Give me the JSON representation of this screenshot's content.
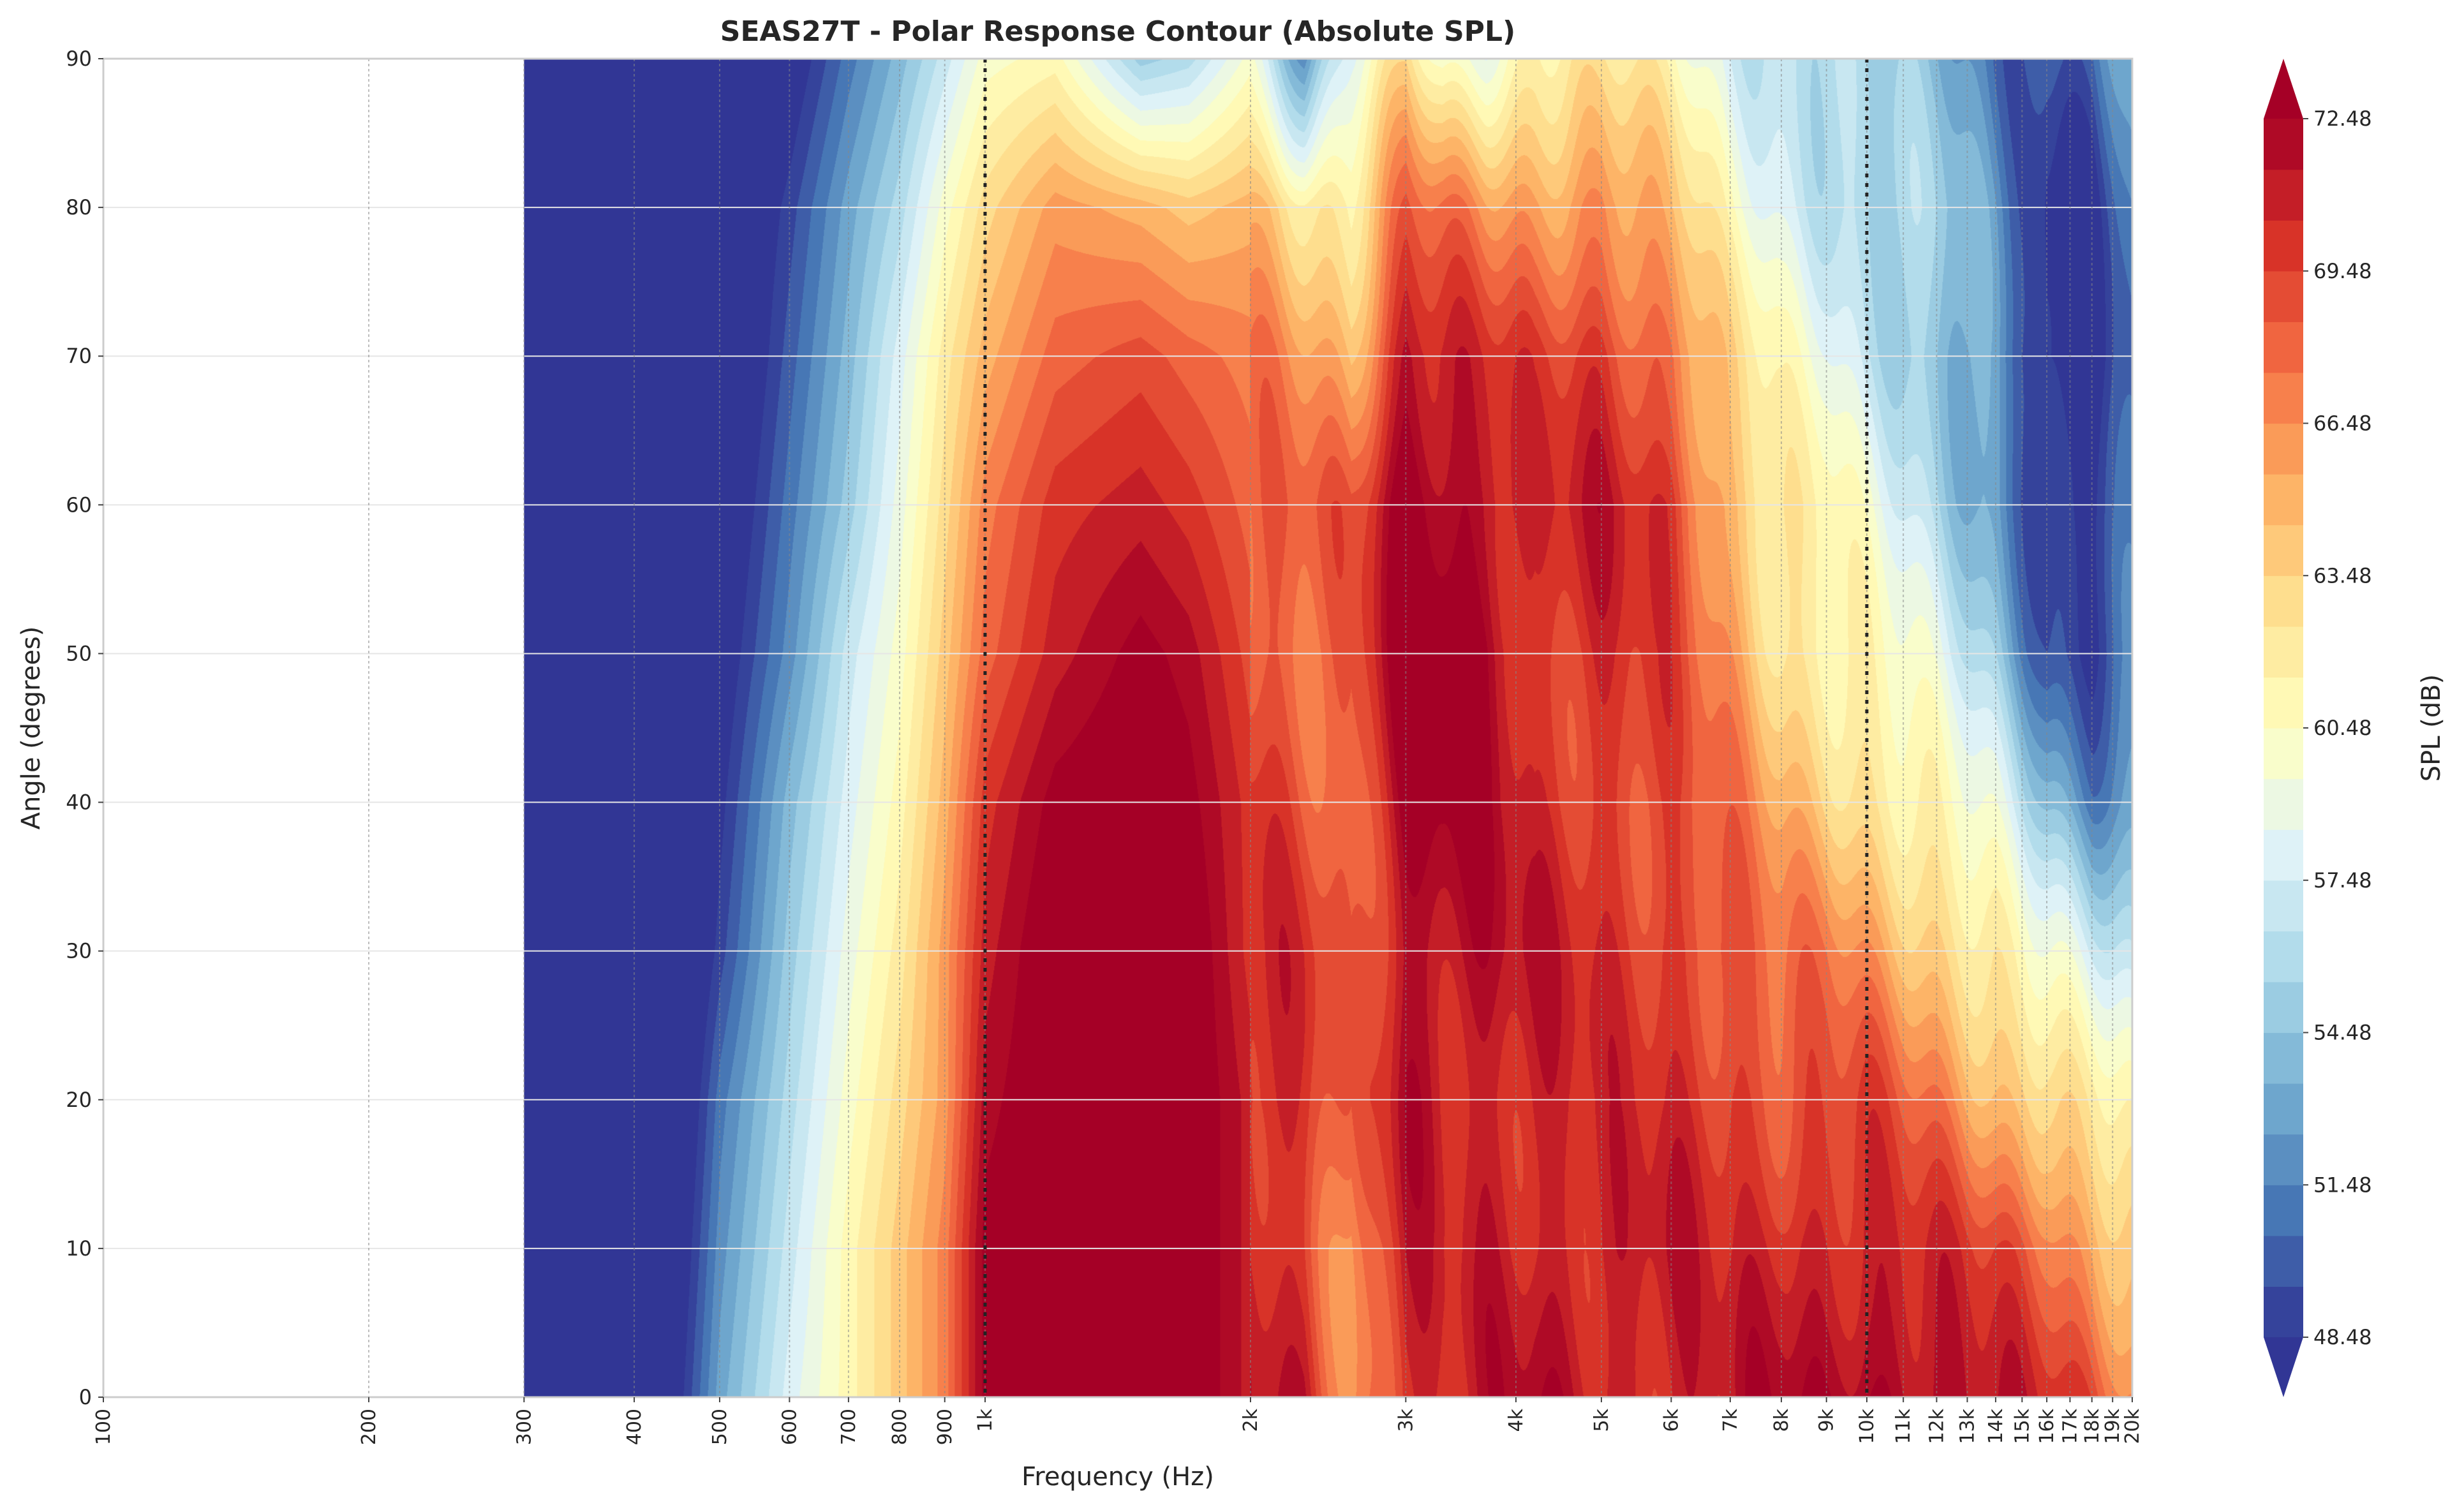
{
  "chart_data": {
    "type": "heatmap",
    "title": "SEAS27T - Polar Response Contour (Absolute SPL)",
    "xlabel": "Frequency (Hz)",
    "ylabel": "Angle (degrees)",
    "x_scale": "log",
    "xlim": [
      100,
      20000
    ],
    "ylim": [
      0,
      90
    ],
    "x_ticks": [
      {
        "value": 100,
        "label": "100"
      },
      {
        "value": 200,
        "label": "200"
      },
      {
        "value": 300,
        "label": "300"
      },
      {
        "value": 400,
        "label": "400"
      },
      {
        "value": 500,
        "label": "500"
      },
      {
        "value": 600,
        "label": "600"
      },
      {
        "value": 700,
        "label": "700"
      },
      {
        "value": 800,
        "label": "800"
      },
      {
        "value": 900,
        "label": "900"
      },
      {
        "value": 1000,
        "label": "1k"
      },
      {
        "value": 2000,
        "label": "2k"
      },
      {
        "value": 3000,
        "label": "3k"
      },
      {
        "value": 4000,
        "label": "4k"
      },
      {
        "value": 5000,
        "label": "5k"
      },
      {
        "value": 6000,
        "label": "6k"
      },
      {
        "value": 7000,
        "label": "7k"
      },
      {
        "value": 8000,
        "label": "8k"
      },
      {
        "value": 9000,
        "label": "9k"
      },
      {
        "value": 10000,
        "label": "10k"
      },
      {
        "value": 11000,
        "label": "11k"
      },
      {
        "value": 12000,
        "label": "12k"
      },
      {
        "value": 13000,
        "label": "13k"
      },
      {
        "value": 14000,
        "label": "14k"
      },
      {
        "value": 15000,
        "label": "15k"
      },
      {
        "value": 16000,
        "label": "16k"
      },
      {
        "value": 17000,
        "label": "17k"
      },
      {
        "value": 18000,
        "label": "18k"
      },
      {
        "value": 19000,
        "label": "19k"
      },
      {
        "value": 20000,
        "label": "20k"
      }
    ],
    "y_ticks": [
      0,
      10,
      20,
      30,
      40,
      50,
      60,
      70,
      80,
      90
    ],
    "reference_lines_hz": [
      1000,
      10000
    ],
    "data_start_hz": 300,
    "colorbar": {
      "label": "SPL (dB)",
      "min": 48.48,
      "max": 72.48,
      "step": 1,
      "extend": "both",
      "ticks": [
        48.48,
        51.48,
        54.48,
        57.48,
        60.48,
        63.48,
        66.48,
        69.48,
        72.48
      ],
      "colormap": "RdYlBu_r"
    },
    "x_freq_grid": [
      300,
      450,
      500,
      600,
      700,
      800,
      900,
      1000,
      1200,
      1500,
      1700,
      2000,
      2300,
      2600,
      3000,
      3300,
      3700,
      4200,
      5000,
      6000,
      7000,
      8000,
      9000,
      10000,
      12000,
      14000,
      16000,
      18000,
      20000
    ],
    "y_angle_grid": [
      0,
      10,
      20,
      30,
      40,
      50,
      60,
      70,
      80,
      90
    ],
    "spl_grid": [
      [
        44,
        44,
        44,
        44,
        44,
        44,
        44,
        44,
        44,
        44
      ],
      [
        48,
        47,
        46,
        45,
        44,
        44,
        44,
        44,
        44,
        44
      ],
      [
        53,
        52,
        51,
        49,
        48,
        47,
        46,
        45,
        45,
        44
      ],
      [
        58,
        57,
        56,
        55,
        54,
        52,
        51,
        50,
        49,
        47
      ],
      [
        61,
        61,
        60,
        59,
        58,
        57,
        55,
        54,
        53,
        51
      ],
      [
        64,
        64,
        63,
        62,
        61,
        60,
        59,
        58,
        56,
        54
      ],
      [
        67,
        67,
        66,
        66,
        65,
        64,
        63,
        62,
        60,
        57
      ],
      [
        73,
        73,
        72,
        71,
        70,
        68,
        67,
        65,
        63,
        60
      ],
      [
        74,
        74,
        74,
        74,
        73,
        71,
        70,
        68,
        66,
        61
      ],
      [
        75,
        75,
        75,
        75,
        74,
        73,
        71,
        69,
        65,
        55
      ],
      [
        74,
        74,
        74,
        74,
        73,
        72,
        70,
        68,
        64,
        56
      ],
      [
        71,
        71,
        71,
        70,
        70,
        69,
        68,
        67,
        65,
        60
      ],
      [
        71,
        70,
        70,
        70,
        69,
        68,
        68,
        66,
        63,
        52
      ],
      [
        66,
        66,
        67,
        68,
        68,
        68,
        68,
        65,
        62,
        58
      ],
      [
        71,
        71,
        72,
        72,
        73,
        74,
        74,
        72,
        68,
        63
      ],
      [
        70,
        70,
        71,
        72,
        73,
        74,
        73,
        71,
        67,
        60
      ],
      [
        71,
        71,
        71,
        72,
        72,
        73,
        72,
        70,
        66,
        60
      ],
      [
        72,
        71,
        71,
        71,
        70,
        70,
        70,
        69,
        66,
        62
      ],
      [
        71,
        71,
        70,
        70,
        70,
        70,
        71,
        70,
        67,
        62
      ],
      [
        71,
        71,
        70,
        70,
        69,
        69,
        70,
        68,
        64,
        61
      ],
      [
        71,
        70,
        70,
        69,
        67,
        66,
        65,
        63,
        60,
        58
      ],
      [
        72,
        71,
        69,
        67,
        65,
        63,
        62,
        60,
        58,
        57
      ],
      [
        72,
        71,
        69,
        67,
        64,
        62,
        61,
        59,
        57,
        56
      ],
      [
        73,
        71,
        69,
        66,
        63,
        61,
        59,
        57,
        56,
        55
      ],
      [
        72,
        70,
        67,
        64,
        61,
        58,
        56,
        55,
        55,
        54
      ],
      [
        71,
        69,
        65,
        62,
        58,
        55,
        53,
        52,
        52,
        51
      ],
      [
        70,
        68,
        64,
        59,
        54,
        50,
        48,
        47,
        48,
        50
      ],
      [
        69,
        66,
        62,
        57,
        52,
        49,
        48,
        47,
        48,
        50
      ],
      [
        67,
        64,
        60,
        56,
        53,
        51,
        50,
        51,
        52,
        53
      ]
    ]
  }
}
